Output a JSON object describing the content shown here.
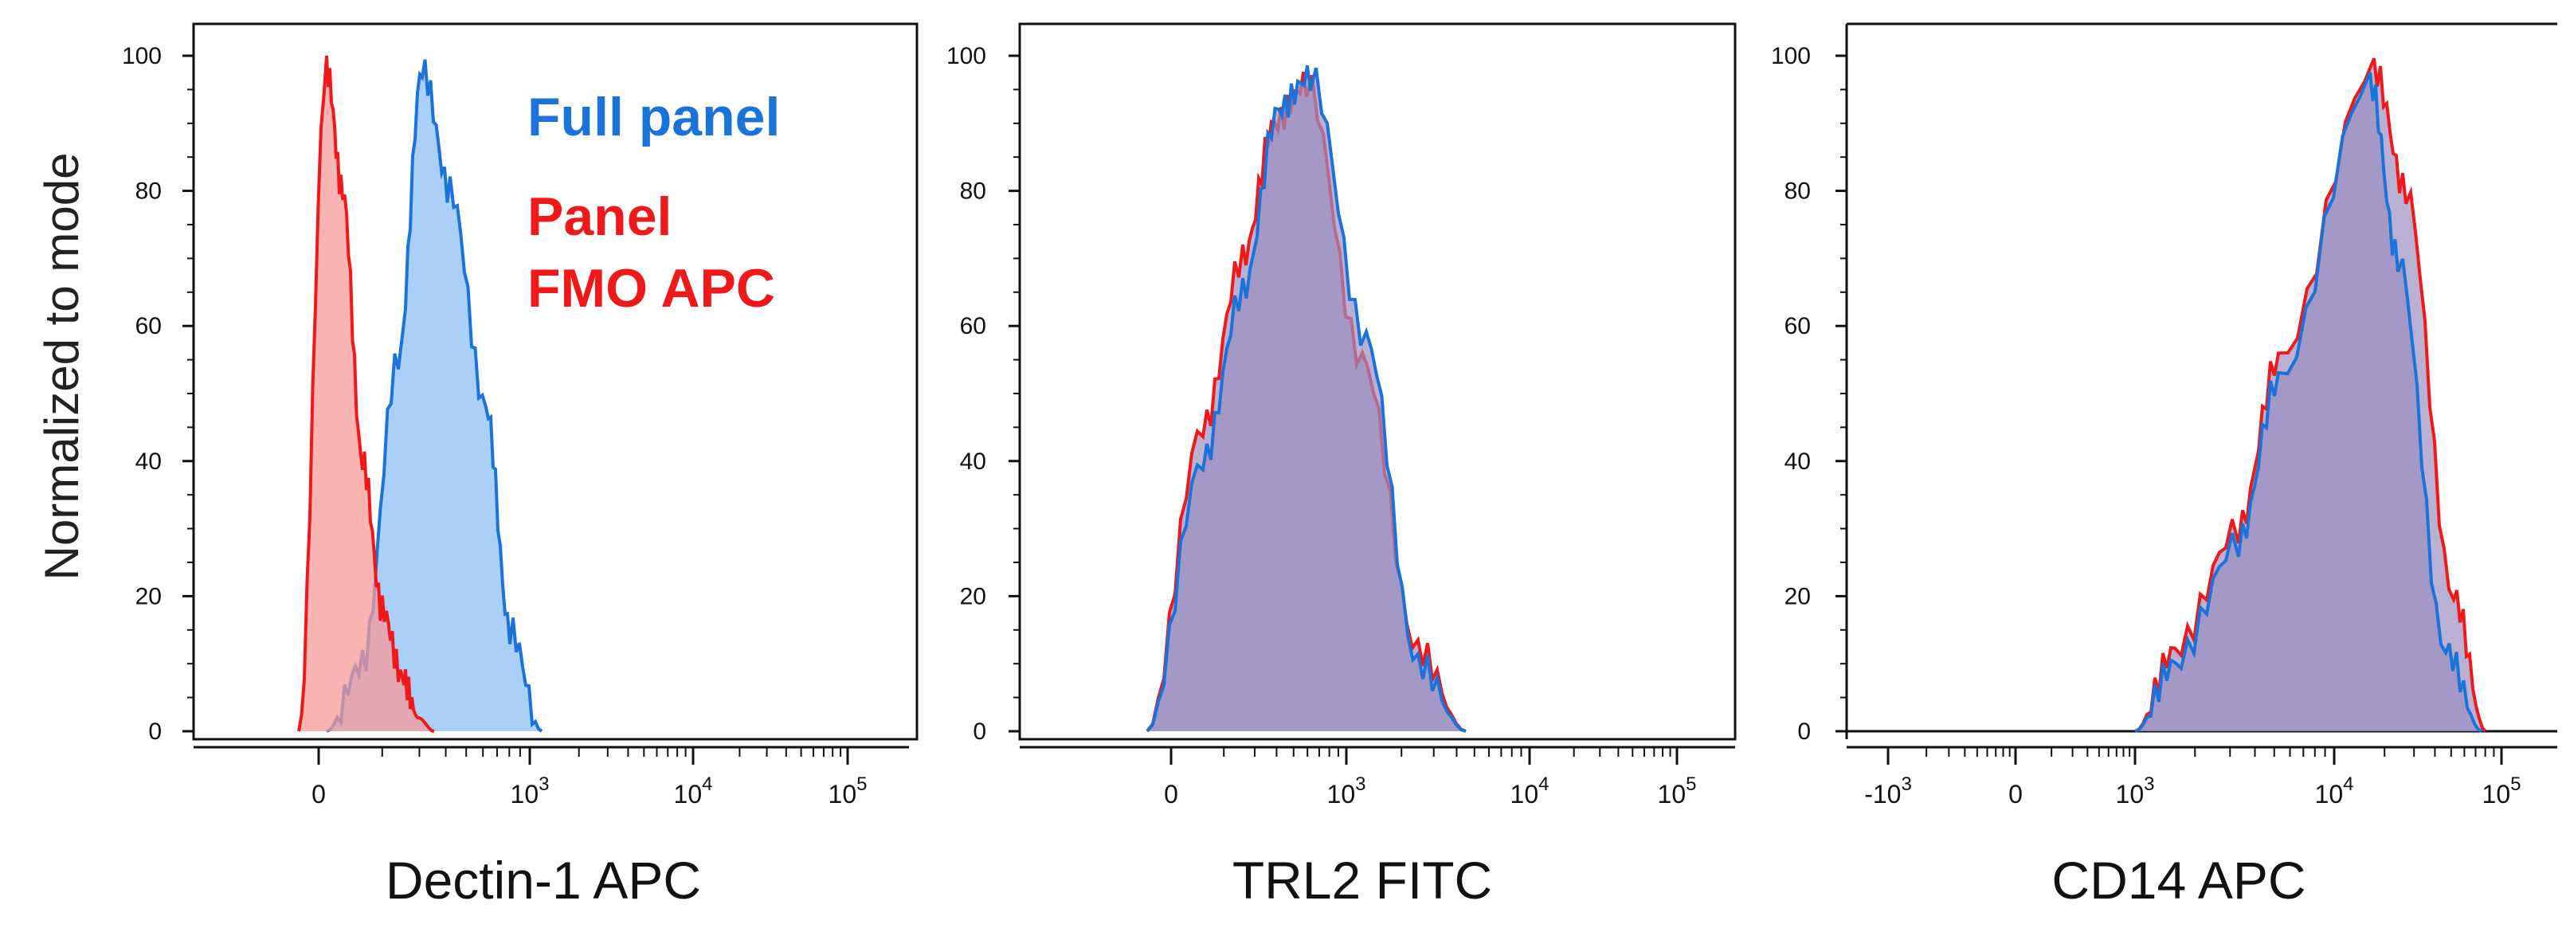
{
  "figure": {
    "ylabel": "Normalized to mode",
    "legend": [
      {
        "label": "Full panel",
        "color": "#1a73d9"
      },
      {
        "label": "Panel",
        "color": "#f01818"
      },
      {
        "label": "FMO APC",
        "color": "#f01818"
      }
    ],
    "colors": {
      "full_panel": "#1a73d9",
      "fmo": "#f01818",
      "overlap": "#9b8fc0"
    }
  },
  "chart_data": [
    {
      "type": "area",
      "xlabel": "Dectin-1 APC",
      "ylabel": "Normalized to mode",
      "scale": "biexponential",
      "ylim": [
        0,
        100
      ],
      "yticks": [
        "0",
        "20",
        "40",
        "60",
        "80",
        "100"
      ],
      "xticks": [
        "0",
        "10^3",
        "10^4",
        "10^5"
      ],
      "legend_placement": "top-right",
      "series": [
        {
          "name": "Panel FMO APC",
          "x": [
            "-100",
            "0",
            "50",
            "100",
            "200",
            "300",
            "400",
            "600"
          ],
          "y": [
            0,
            98,
            80,
            40,
            18,
            8,
            2,
            0
          ]
        },
        {
          "name": "Full panel",
          "x": [
            "0",
            "100",
            "200",
            "300",
            "400",
            "600",
            "800",
            "1000"
          ],
          "y": [
            0,
            10,
            55,
            98,
            80,
            48,
            15,
            0
          ]
        }
      ]
    },
    {
      "type": "area",
      "xlabel": "TRL2 FITC",
      "ylim": [
        0,
        100
      ],
      "yticks": [
        "0",
        "20",
        "40",
        "60",
        "80",
        "100"
      ],
      "xticks": [
        "0",
        "10^3",
        "10^4",
        "10^5"
      ],
      "series": [
        {
          "name": "Panel FMO APC",
          "x": [
            "0",
            "200",
            "400",
            "600",
            "800",
            "1200",
            "2000",
            "4000"
          ],
          "y": [
            0,
            45,
            70,
            90,
            96,
            55,
            12,
            0
          ]
        },
        {
          "name": "Full panel",
          "x": [
            "0",
            "200",
            "400",
            "600",
            "800",
            "1200",
            "2000",
            "4000"
          ],
          "y": [
            0,
            40,
            65,
            92,
            97,
            58,
            10,
            0
          ]
        }
      ]
    },
    {
      "type": "area",
      "xlabel": "CD14 APC",
      "ylim": [
        0,
        100
      ],
      "yticks": [
        "0",
        "20",
        "40",
        "60",
        "80",
        "100"
      ],
      "xticks": [
        "-10^3",
        "0",
        "10^3",
        "10^4",
        "10^5"
      ],
      "series": [
        {
          "name": "Panel FMO APC",
          "x": [
            "1000",
            "2000",
            "5000",
            "10000",
            "20000",
            "30000",
            "50000",
            "70000"
          ],
          "y": [
            0,
            12,
            30,
            55,
            98,
            80,
            20,
            0
          ]
        },
        {
          "name": "Full panel",
          "x": [
            "1000",
            "2000",
            "5000",
            "10000",
            "20000",
            "30000",
            "50000",
            "70000"
          ],
          "y": [
            0,
            10,
            28,
            52,
            96,
            70,
            12,
            0
          ]
        }
      ]
    }
  ]
}
